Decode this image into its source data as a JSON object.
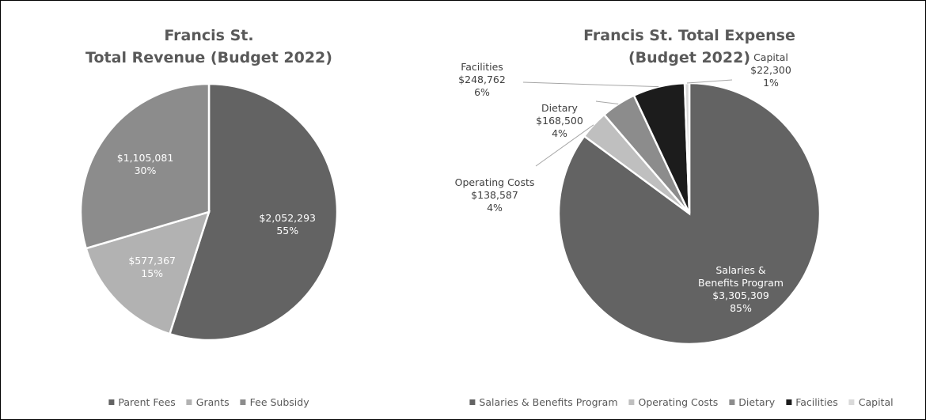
{
  "chart_data": [
    {
      "type": "pie",
      "title": "Francis St.\nTotal Revenue (Budget 2022)",
      "categories": [
        "Parent Fees",
        "Grants",
        "Fee Subsidy"
      ],
      "values": [
        2052293,
        577367,
        1105081
      ],
      "value_labels": [
        "$2,052,293",
        "$577,367",
        "$1,105,081"
      ],
      "percent_labels": [
        "55%",
        "15%",
        "30%"
      ],
      "colors": [
        "#636363",
        "#b2b2b2",
        "#8c8c8c"
      ],
      "legend": "bottom"
    },
    {
      "type": "pie",
      "title": "Francis St. Total Expense (Budget 2022)",
      "categories": [
        "Salaries & Benefits Program",
        "Operating Costs",
        "Dietary",
        "Facilities",
        "Capital"
      ],
      "values": [
        3305309,
        138587,
        168500,
        248762,
        22300
      ],
      "value_labels": [
        "$3,305,309",
        "$138,587",
        "$168,500",
        "$248,762",
        "$22,300"
      ],
      "percent_labels": [
        "85%",
        "4%",
        "4%",
        "6%",
        "1%"
      ],
      "colors": [
        "#636363",
        "#bfbfbf",
        "#8c8c8c",
        "#1c1c1c",
        "#d9d9d9"
      ],
      "legend": "bottom"
    }
  ]
}
